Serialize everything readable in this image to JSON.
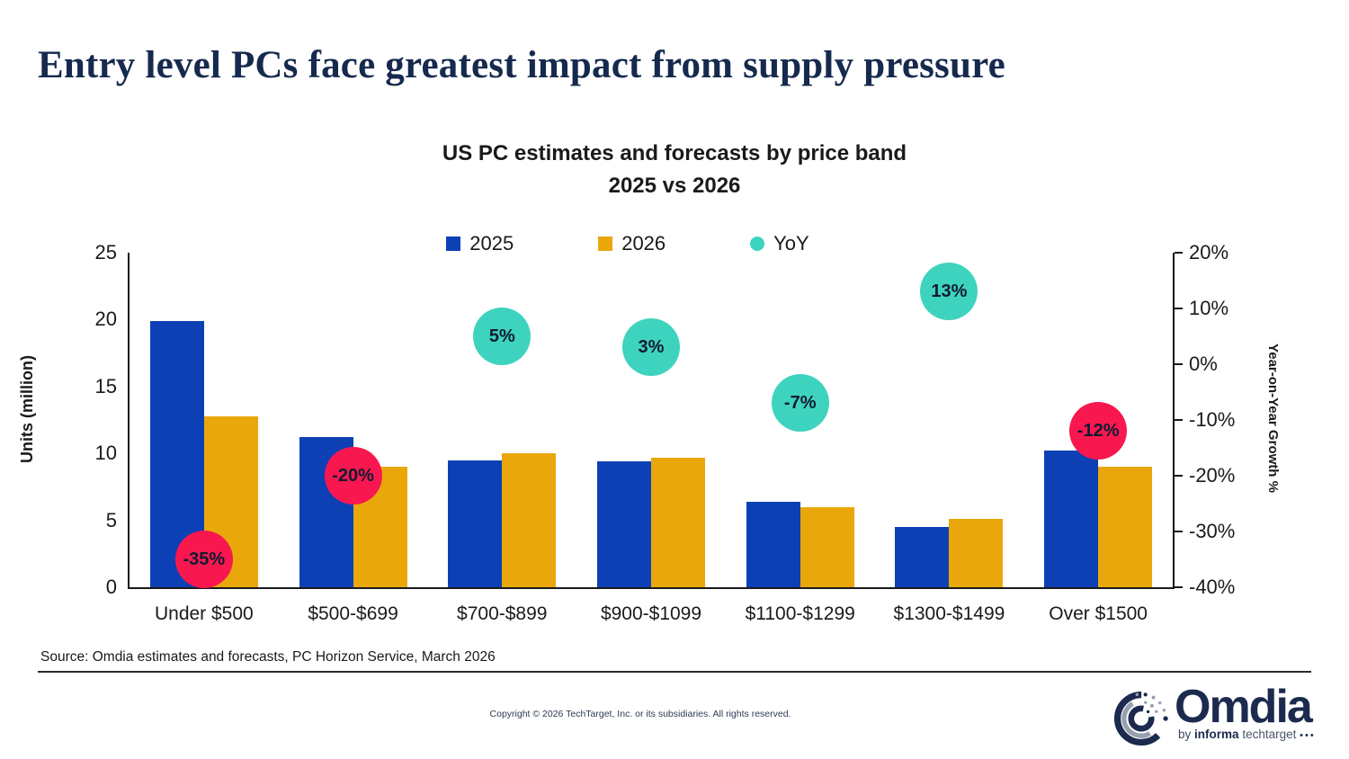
{
  "header": {
    "title": "Entry level PCs face greatest impact from supply pressure"
  },
  "chart_data": {
    "type": "bar",
    "title": "US PC estimates and forecasts by price band",
    "subtitle": "2025 vs 2026",
    "categories": [
      "Under $500",
      "$500-$699",
      "$700-$899",
      "$900-$1099",
      "$1100-$1299",
      "$1300-$1499",
      "Over $1500"
    ],
    "series": [
      {
        "name": "2025",
        "color": "#0E40B5",
        "values": [
          19.9,
          11.2,
          9.5,
          9.4,
          6.4,
          4.5,
          10.2
        ]
      },
      {
        "name": "2026",
        "color": "#E9A70B",
        "values": [
          12.8,
          9.0,
          10.0,
          9.7,
          6.0,
          5.1,
          9.0
        ]
      }
    ],
    "yoy_series": {
      "name": "YoY",
      "values": [
        -35,
        -20,
        5,
        3,
        -7,
        13,
        -12
      ],
      "labels": [
        "-35%",
        "-20%",
        "5%",
        "3%",
        "-7%",
        "13%",
        "-12%"
      ],
      "colors": [
        "#F8174F",
        "#F8174F",
        "#3ED3BE",
        "#3ED3BE",
        "#3ED3BE",
        "#3ED3BE",
        "#F8174F"
      ]
    },
    "left_axis": {
      "label": "Units (million)",
      "ticks": [
        0,
        5,
        10,
        15,
        20,
        25
      ],
      "min": 0,
      "max": 25
    },
    "right_axis": {
      "label": "Year-on-Year Growth %",
      "ticks": [
        20,
        10,
        0,
        -10,
        -20,
        -30,
        -40
      ],
      "tick_labels": [
        "20%",
        "10%",
        "0%",
        "-10%",
        "-20%",
        "-30%",
        "-40%"
      ],
      "min": -40,
      "max": 20
    },
    "legend": [
      {
        "label": "2025",
        "swatch": "square",
        "color": "#0E40B5"
      },
      {
        "label": "2026",
        "swatch": "square",
        "color": "#E9A70B"
      },
      {
        "label": "YoY",
        "swatch": "circle",
        "color": "#3ED3BE"
      }
    ],
    "grid": false,
    "legend_position": "top-center"
  },
  "footer": {
    "source": "Source: Omdia estimates and forecasts, PC Horizon Service, March 2026",
    "copyright": "Copyright © 2026 TechTarget, Inc. or its subsidiaries. All rights reserved.",
    "logo": {
      "name": "Omdia",
      "by": "by",
      "informa": "informa",
      "techtarget": "techtarget",
      "dots": "•••"
    }
  },
  "colors": {
    "title_navy": "#16294E",
    "bar_2025_blue": "#0E40B5",
    "bar_2026_gold": "#E9A70B",
    "yoy_positive_teal": "#3ED3BE",
    "yoy_negative_red": "#F8174F",
    "axis_black": "#1A1A1A",
    "logo_navy": "#1B2A4E"
  }
}
